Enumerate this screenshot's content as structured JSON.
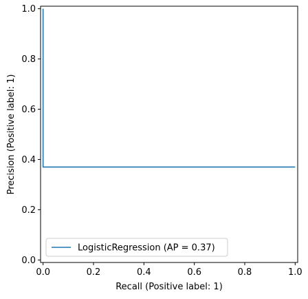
{
  "chart_data": {
    "type": "line",
    "title": "",
    "xlabel": "Recall (Positive label: 1)",
    "ylabel": "Precision (Positive label: 1)",
    "xlim": [
      -0.01,
      1.01
    ],
    "ylim": [
      -0.01,
      1.01
    ],
    "xticks": [
      0.0,
      0.2,
      0.4,
      0.6,
      0.8,
      1.0
    ],
    "xtick_labels": [
      "0.0",
      "0.2",
      "0.4",
      "0.6",
      "0.8",
      "1.0"
    ],
    "yticks": [
      0.0,
      0.2,
      0.4,
      0.6,
      0.8,
      1.0
    ],
    "ytick_labels": [
      "0.0",
      "0.2",
      "0.4",
      "0.6",
      "0.8",
      "1.0"
    ],
    "grid": false,
    "legend_position": "lower-left",
    "series": [
      {
        "name": "LogisticRegression (AP = 0.37)",
        "color": "#1f77b4",
        "step": "post",
        "x": [
          1.0,
          0.0,
          0.0
        ],
        "y": [
          0.37,
          0.37,
          1.0
        ]
      }
    ]
  }
}
